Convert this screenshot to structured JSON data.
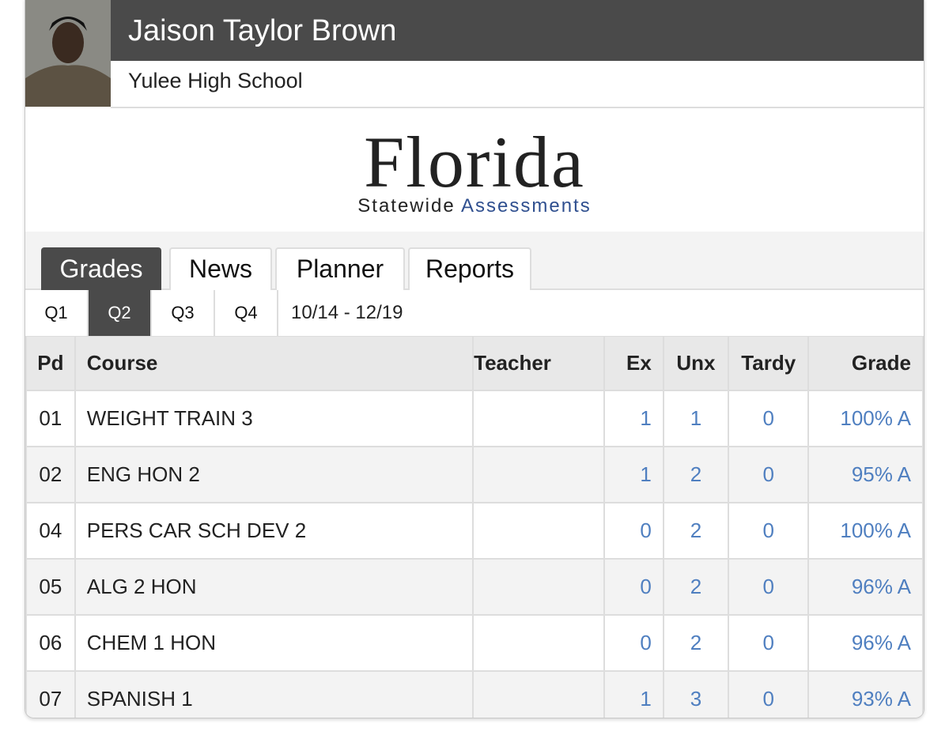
{
  "header": {
    "name": "Jaison Taylor Brown",
    "school": "Yulee High School"
  },
  "logo": {
    "title": "Florida",
    "subtitle_1": "Statewide",
    "subtitle_2": "Assessments"
  },
  "tabs": [
    {
      "label": "Grades",
      "active": true
    },
    {
      "label": "News",
      "active": false
    },
    {
      "label": "Planner",
      "active": false
    },
    {
      "label": "Reports",
      "active": false
    }
  ],
  "quarters": [
    {
      "label": "Q1",
      "active": false
    },
    {
      "label": "Q2",
      "active": true
    },
    {
      "label": "Q3",
      "active": false
    },
    {
      "label": "Q4",
      "active": false
    }
  ],
  "date_range": "10/14 - 12/19",
  "table": {
    "columns": [
      "Pd",
      "Course",
      "Teacher",
      "Ex",
      "Unx",
      "Tardy",
      "Grade"
    ],
    "rows": [
      {
        "pd": "01",
        "course": "WEIGHT TRAIN 3",
        "ex": 1,
        "unx": 1,
        "tardy": 0,
        "grade": "100% A"
      },
      {
        "pd": "02",
        "course": "ENG HON 2",
        "ex": 1,
        "unx": 2,
        "tardy": 0,
        "grade": "95% A"
      },
      {
        "pd": "04",
        "course": "PERS CAR SCH DEV 2",
        "ex": 0,
        "unx": 2,
        "tardy": 0,
        "grade": "100% A"
      },
      {
        "pd": "05",
        "course": "ALG 2 HON",
        "ex": 0,
        "unx": 2,
        "tardy": 0,
        "grade": "96% A"
      },
      {
        "pd": "06",
        "course": "CHEM 1 HON",
        "ex": 0,
        "unx": 2,
        "tardy": 0,
        "grade": "96% A"
      },
      {
        "pd": "07",
        "course": "SPANISH 1",
        "ex": 1,
        "unx": 3,
        "tardy": 0,
        "grade": "93% A"
      }
    ]
  }
}
